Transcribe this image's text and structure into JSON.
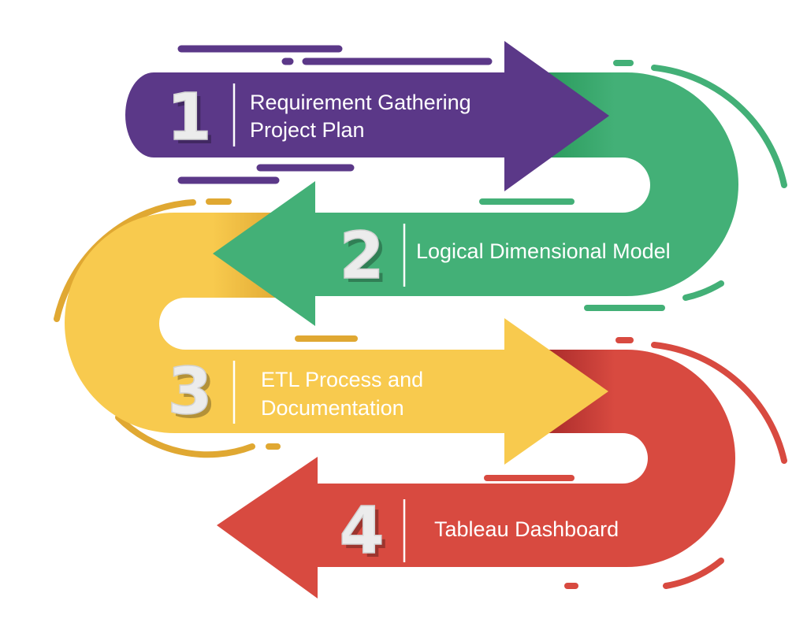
{
  "colors": {
    "purple": "#5b3888",
    "green": "#43b077",
    "yellow": "#f8ca4e",
    "red": "#d84a40"
  },
  "steps": [
    {
      "number": "1",
      "lines": [
        "Requirement Gathering",
        "Project Plan"
      ],
      "color": "#5b3888"
    },
    {
      "number": "2",
      "lines": [
        "Logical Dimensional Model"
      ],
      "color": "#43b077"
    },
    {
      "number": "3",
      "lines": [
        "ETL Process and",
        "Documentation"
      ],
      "color": "#f8ca4e"
    },
    {
      "number": "4",
      "lines": [
        "Tableau Dashboard"
      ],
      "color": "#d84a40"
    }
  ]
}
